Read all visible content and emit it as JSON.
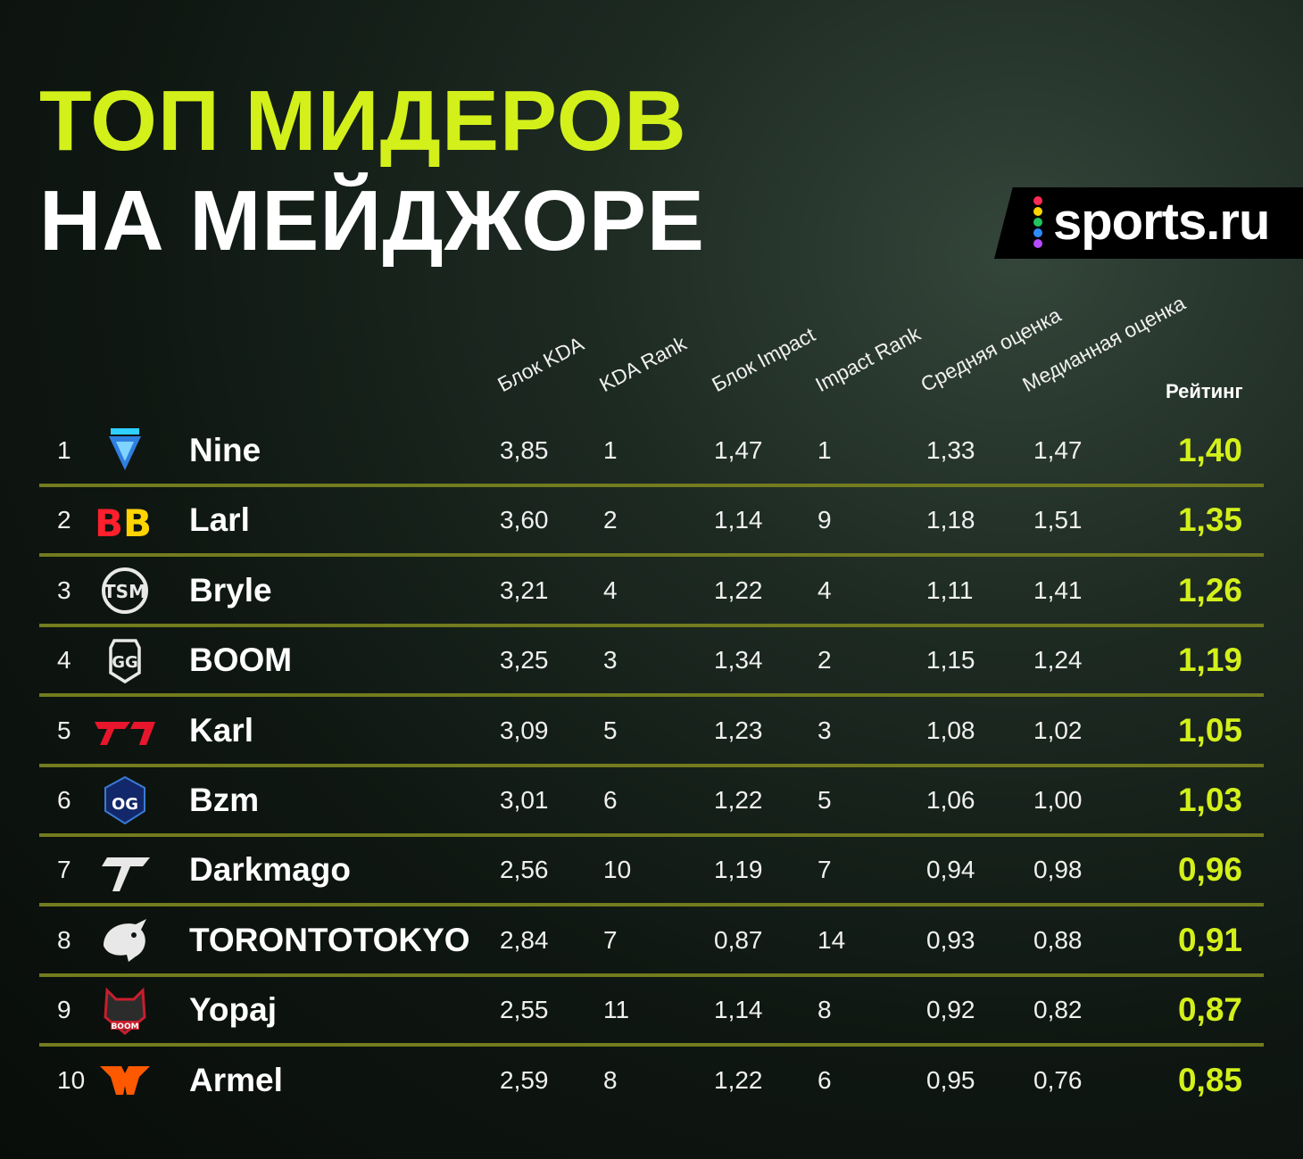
{
  "title": {
    "line1": "ТОП МИДЕРОВ",
    "line2": "НА МЕЙДЖОРЕ"
  },
  "brand": {
    "text": "sports.ru",
    "dot_colors": [
      "#ff2c55",
      "#ffd400",
      "#22c55e",
      "#2f8cff",
      "#b54cff"
    ]
  },
  "colors": {
    "accent": "#d3f01b",
    "separator": "#737c1e",
    "text": "#ffffff"
  },
  "columns": {
    "kda_block": "Блок KDA",
    "kda_rank": "KDA Rank",
    "impact_block": "Блок Impact",
    "impact_rank": "Impact Rank",
    "avg_score": "Средняя оценка",
    "median_score": "Медианная оценка",
    "rating": "Рейтинг"
  },
  "rows": [
    {
      "rank": "1",
      "team_icon": "tundra-logo-icon",
      "player": "Nine",
      "kda_block": "3,85",
      "kda_rank": "1",
      "impact_block": "1,47",
      "impact_rank": "1",
      "avg_score": "1,33",
      "median_score": "1,47",
      "rating": "1,40"
    },
    {
      "rank": "2",
      "team_icon": "betboom-logo-icon",
      "player": "Larl",
      "kda_block": "3,60",
      "kda_rank": "2",
      "impact_block": "1,14",
      "impact_rank": "9",
      "avg_score": "1,18",
      "median_score": "1,51",
      "rating": "1,35"
    },
    {
      "rank": "3",
      "team_icon": "tsm-logo-icon",
      "player": "Bryle",
      "kda_block": "3,21",
      "kda_rank": "4",
      "impact_block": "1,22",
      "impact_rank": "4",
      "avg_score": "1,11",
      "median_score": "1,41",
      "rating": "1,26"
    },
    {
      "rank": "4",
      "team_icon": "gaimin-gladiators-logo-icon",
      "player": "BOOM",
      "kda_block": "3,25",
      "kda_rank": "3",
      "impact_block": "1,34",
      "impact_rank": "2",
      "avg_score": "1,15",
      "median_score": "1,24",
      "rating": "1,19"
    },
    {
      "rank": "5",
      "team_icon": "t1-logo-icon",
      "player": "Karl",
      "kda_block": "3,09",
      "kda_rank": "5",
      "impact_block": "1,23",
      "impact_rank": "3",
      "avg_score": "1,08",
      "median_score": "1,02",
      "rating": "1,05"
    },
    {
      "rank": "6",
      "team_icon": "og-logo-icon",
      "player": "Bzm",
      "kda_block": "3,01",
      "kda_rank": "6",
      "impact_block": "1,22",
      "impact_rank": "5",
      "avg_score": "1,06",
      "median_score": "1,00",
      "rating": "1,03"
    },
    {
      "rank": "7",
      "team_icon": "heroic-logo-icon",
      "player": "Darkmago",
      "kda_block": "2,56",
      "kda_rank": "10",
      "impact_block": "1,19",
      "impact_rank": "7",
      "avg_score": "0,94",
      "median_score": "0,98",
      "rating": "0,96"
    },
    {
      "rank": "8",
      "team_icon": "team-spirit-logo-icon",
      "player": "TORONTOTOKYO",
      "kda_block": "2,84",
      "kda_rank": "7",
      "impact_block": "0,87",
      "impact_rank": "14",
      "avg_score": "0,93",
      "median_score": "0,88",
      "rating": "0,91"
    },
    {
      "rank": "9",
      "team_icon": "boom-logo-icon",
      "player": "Yopaj",
      "kda_block": "2,55",
      "kda_rank": "11",
      "impact_block": "1,14",
      "impact_rank": "8",
      "avg_score": "0,92",
      "median_score": "0,82",
      "rating": "0,87"
    },
    {
      "rank": "10",
      "team_icon": "fnatic-logo-icon",
      "player": "Armel",
      "kda_block": "2,59",
      "kda_rank": "8",
      "impact_block": "1,22",
      "impact_rank": "6",
      "avg_score": "0,95",
      "median_score": "0,76",
      "rating": "0,85"
    }
  ]
}
